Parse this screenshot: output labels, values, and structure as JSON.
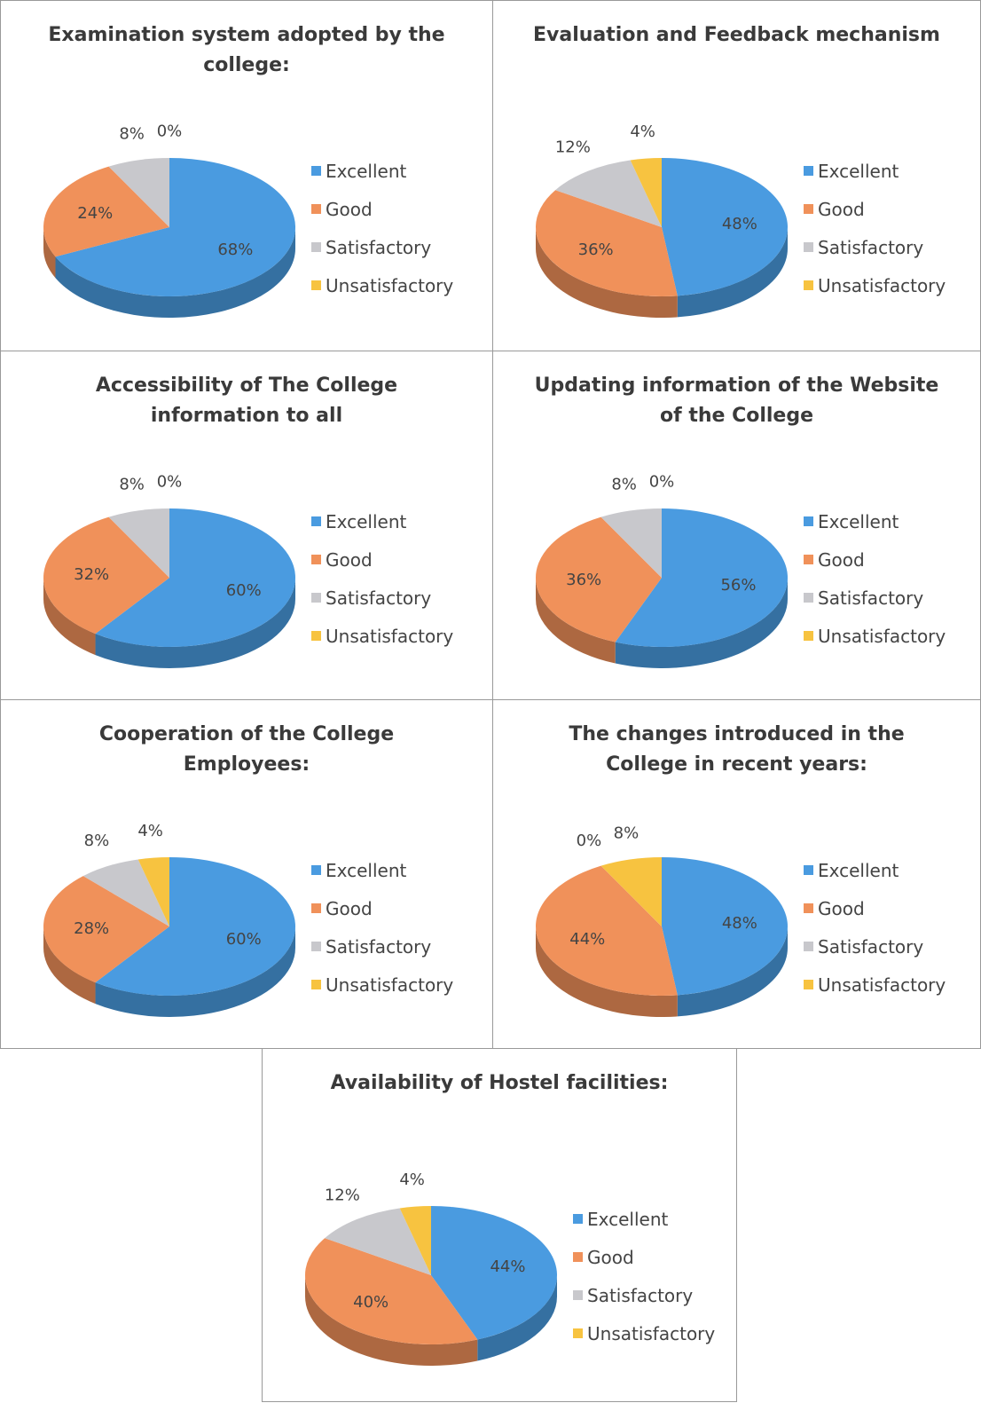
{
  "chart_data": [
    {
      "type": "pie",
      "title": "Examination system adopted by the college:",
      "categories": [
        "Excellent",
        "Good",
        "Satisfactory",
        "Unsatisfactory"
      ],
      "values": [
        68,
        24,
        8,
        0
      ],
      "value_labels": [
        "68%",
        "24%",
        "8%",
        "0%"
      ],
      "colors": [
        "#4a9be0",
        "#f0915a",
        "#c8c8cc",
        "#f7c340"
      ]
    },
    {
      "type": "pie",
      "title": "Evaluation and Feedback mechanism",
      "categories": [
        "Excellent",
        "Good",
        "Satisfactory",
        "Unsatisfactory"
      ],
      "values": [
        48,
        36,
        12,
        4
      ],
      "value_labels": [
        "48%",
        "36%",
        "12%",
        "4%"
      ],
      "colors": [
        "#4a9be0",
        "#f0915a",
        "#c8c8cc",
        "#f7c340"
      ]
    },
    {
      "type": "pie",
      "title": "Accessibility of The College information to all",
      "categories": [
        "Excellent",
        "Good",
        "Satisfactory",
        "Unsatisfactory"
      ],
      "values": [
        60,
        32,
        8,
        0
      ],
      "value_labels": [
        "60%",
        "32%",
        "8%",
        "0%"
      ],
      "colors": [
        "#4a9be0",
        "#f0915a",
        "#c8c8cc",
        "#f7c340"
      ]
    },
    {
      "type": "pie",
      "title": "Updating information of the Website of the College",
      "categories": [
        "Excellent",
        "Good",
        "Satisfactory",
        "Unsatisfactory"
      ],
      "values": [
        56,
        36,
        8,
        0
      ],
      "value_labels": [
        "56%",
        "36%",
        "8%",
        "0%"
      ],
      "colors": [
        "#4a9be0",
        "#f0915a",
        "#c8c8cc",
        "#f7c340"
      ]
    },
    {
      "type": "pie",
      "title": "Cooperation of the College Employees:",
      "categories": [
        "Excellent",
        "Good",
        "Satisfactory",
        "Unsatisfactory"
      ],
      "values": [
        60,
        28,
        8,
        4
      ],
      "value_labels": [
        "60%",
        "28%",
        "8%",
        "4%"
      ],
      "colors": [
        "#4a9be0",
        "#f0915a",
        "#c8c8cc",
        "#f7c340"
      ]
    },
    {
      "type": "pie",
      "title": "The changes introduced in the College in recent years:",
      "categories": [
        "Excellent",
        "Good",
        "Satisfactory",
        "Unsatisfactory"
      ],
      "values": [
        48,
        44,
        0,
        8
      ],
      "value_labels": [
        "48%",
        "44%",
        "0%",
        "8%"
      ],
      "colors": [
        "#4a9be0",
        "#f0915a",
        "#c8c8cc",
        "#f7c340"
      ]
    },
    {
      "type": "pie",
      "title": "Availability of Hostel facilities:",
      "categories": [
        "Excellent",
        "Good",
        "Satisfactory",
        "Unsatisfactory"
      ],
      "values": [
        44,
        40,
        12,
        4
      ],
      "value_labels": [
        "44%",
        "40%",
        "12%",
        "4%"
      ],
      "colors": [
        "#4a9be0",
        "#f0915a",
        "#c8c8cc",
        "#f7c340"
      ]
    }
  ]
}
